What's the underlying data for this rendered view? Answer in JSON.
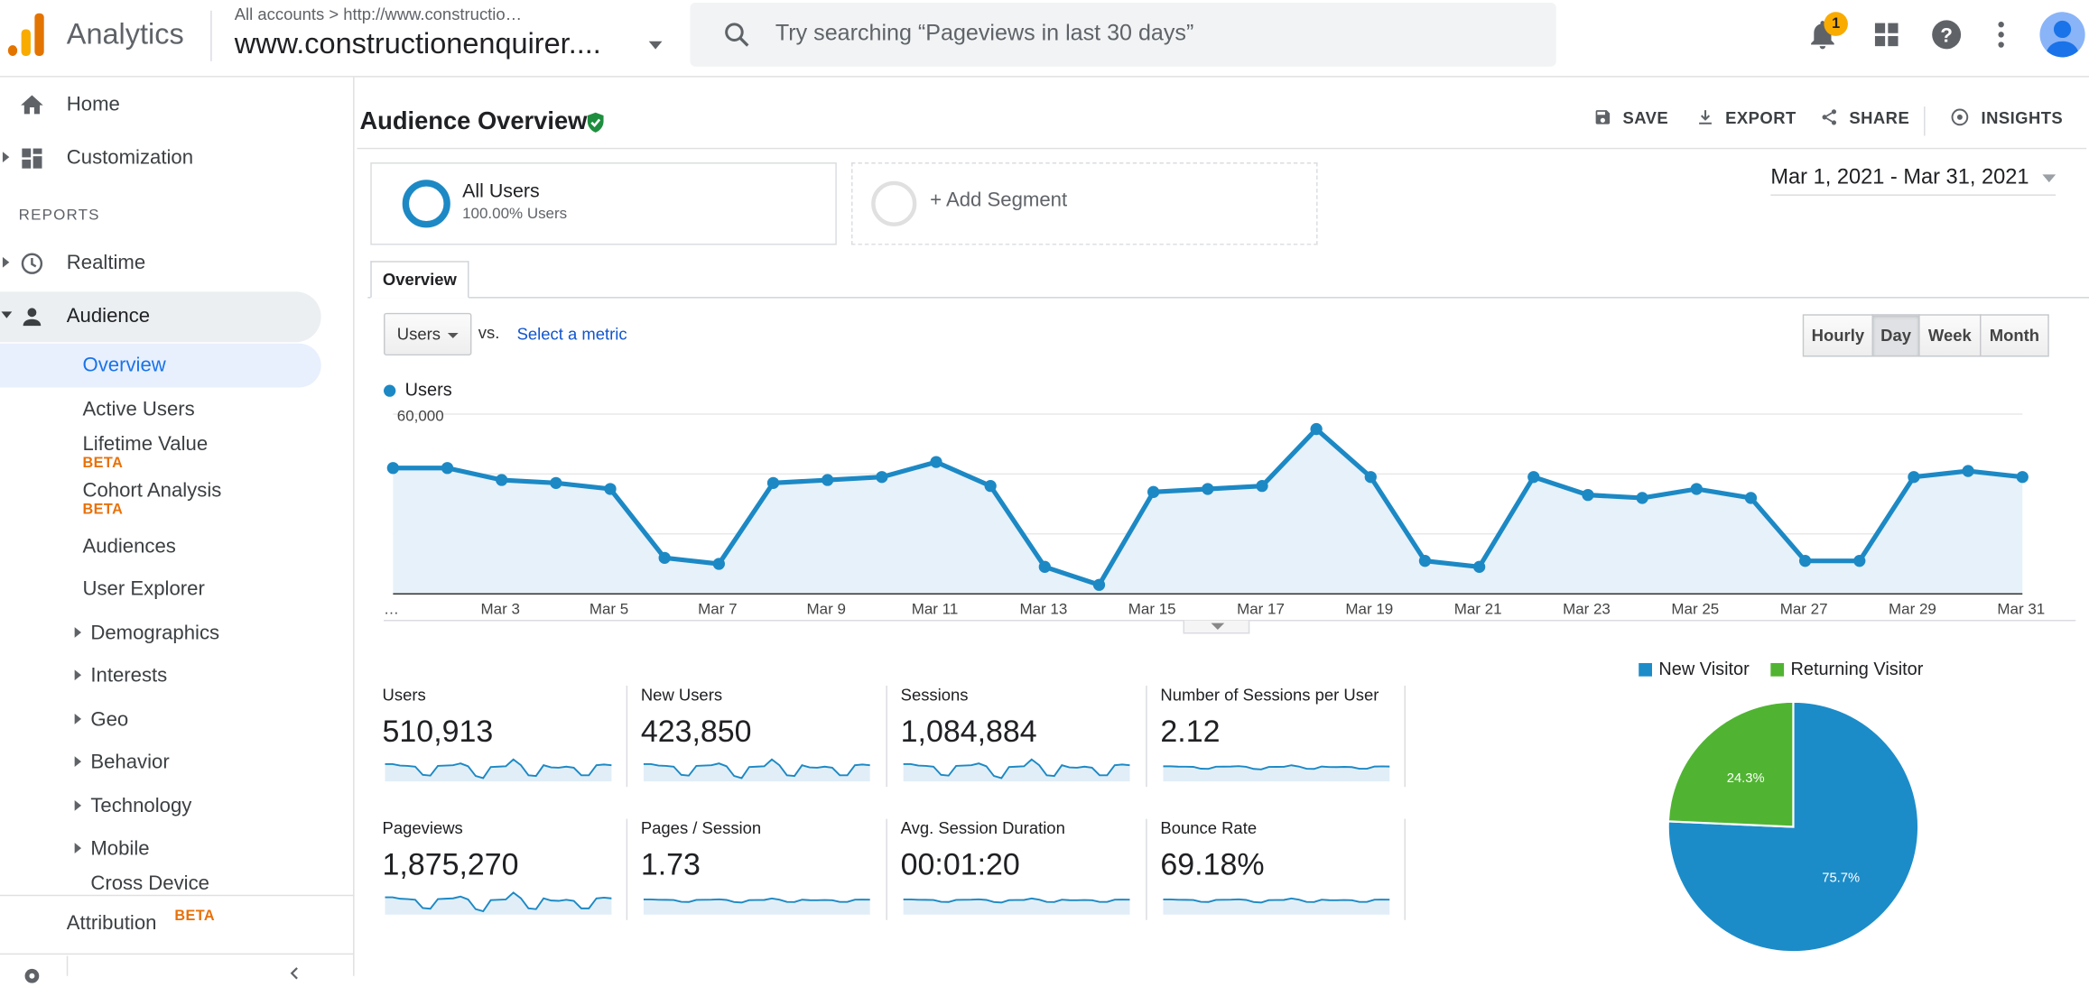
{
  "app": {
    "name": "Analytics"
  },
  "account": {
    "crumb": "All accounts > http://www.constructio…",
    "property": "www.constructionenquirer...."
  },
  "search": {
    "placeholder": "Try searching “Pageviews in last 30 days”"
  },
  "notifications": {
    "count": "1"
  },
  "sidebar": {
    "home": "Home",
    "customization": "Customization",
    "reports_header": "REPORTS",
    "realtime": "Realtime",
    "audience": "Audience",
    "audience_items": [
      {
        "label": "Overview"
      },
      {
        "label": "Active Users"
      },
      {
        "label": "Lifetime Value",
        "badge": "BETA"
      },
      {
        "label": "Cohort Analysis",
        "badge": "BETA"
      },
      {
        "label": "Audiences"
      },
      {
        "label": "User Explorer"
      },
      {
        "label": "Demographics"
      },
      {
        "label": "Interests"
      },
      {
        "label": "Geo"
      },
      {
        "label": "Behavior"
      },
      {
        "label": "Technology"
      },
      {
        "label": "Mobile"
      },
      {
        "label": "Cross Device"
      }
    ],
    "attribution": "Attribution",
    "attribution_badge": "BETA"
  },
  "page": {
    "title": "Audience Overview",
    "actions": {
      "save": "SAVE",
      "export": "EXPORT",
      "share": "SHARE",
      "insights": "INSIGHTS"
    },
    "segment": {
      "name": "All Users",
      "sub": "100.00% Users"
    },
    "add_segment": "+ Add Segment",
    "date_range": "Mar 1, 2021 - Mar 31, 2021",
    "tab": "Overview",
    "metric_select": "Users",
    "vs": "vs.",
    "select_metric": "Select a metric",
    "granularity": [
      "Hourly",
      "Day",
      "Week",
      "Month"
    ],
    "granularity_active": "Day"
  },
  "chart_data": [
    {
      "type": "area",
      "series": [
        {
          "name": "Users",
          "color": "#1c89c5",
          "values": [
            42000,
            42000,
            38000,
            37000,
            35000,
            12000,
            10000,
            37000,
            38000,
            39000,
            44000,
            36000,
            9000,
            3000,
            34000,
            35000,
            36000,
            55000,
            39000,
            11000,
            9000,
            39000,
            33000,
            32000,
            35000,
            32000,
            11000,
            11000,
            39000,
            41000,
            39000
          ]
        }
      ],
      "x_tick_labels": [
        "…",
        "Mar 3",
        "Mar 5",
        "Mar 7",
        "Mar 9",
        "Mar 11",
        "Mar 13",
        "Mar 15",
        "Mar 17",
        "Mar 19",
        "Mar 21",
        "Mar 23",
        "Mar 25",
        "Mar 27",
        "Mar 29",
        "Mar 31"
      ],
      "y_ticks": [
        "20,000",
        "40,000",
        "60,000"
      ],
      "ylim": [
        0,
        60000
      ],
      "grid": true
    },
    {
      "type": "pie",
      "categories": [
        "New Visitor",
        "Returning Visitor"
      ],
      "values": [
        75.7,
        24.3
      ],
      "labels": [
        "75.7%",
        "24.3%"
      ],
      "colors": [
        "#1c8cc9",
        "#50b432"
      ],
      "legend": "top"
    }
  ],
  "stats": [
    {
      "name": "Users",
      "value": "510,913"
    },
    {
      "name": "New Users",
      "value": "423,850"
    },
    {
      "name": "Sessions",
      "value": "1,084,884"
    },
    {
      "name": "Number of Sessions per User",
      "value": "2.12"
    },
    {
      "name": "Pageviews",
      "value": "1,875,270"
    },
    {
      "name": "Pages / Session",
      "value": "1.73"
    },
    {
      "name": "Avg. Session Duration",
      "value": "00:01:20"
    },
    {
      "name": "Bounce Rate",
      "value": "69.18%"
    }
  ],
  "colors": {
    "accent": "#1c89c5",
    "new_visitor": "#1c8cc9",
    "returning_visitor": "#50b432",
    "beta": "#e8710a",
    "link": "#15c"
  }
}
